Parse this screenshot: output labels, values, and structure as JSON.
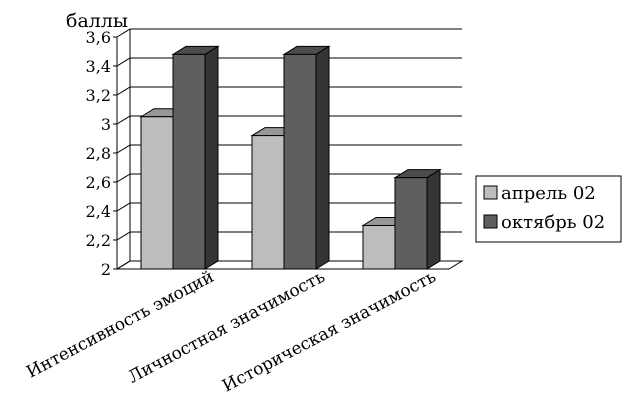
{
  "chart_data": {
    "type": "bar",
    "ylabel": "баллы",
    "categories": [
      "Интенсивность эмоций",
      "Личностная значимость",
      "Историческая значимость"
    ],
    "series": [
      {
        "name": "апрель 02",
        "values": [
          3.05,
          2.92,
          2.3
        ],
        "color": "#bdbdbd"
      },
      {
        "name": "октябрь 02",
        "values": [
          3.48,
          3.48,
          2.63
        ],
        "color": "#5f5f5f"
      }
    ],
    "ylim": [
      2,
      3.6
    ],
    "yticks": [
      "2",
      "2,2",
      "2,4",
      "2,6",
      "2,8",
      "3",
      "3,2",
      "3,4",
      "3,6"
    ],
    "grid": true,
    "legend": "right",
    "style": "3d-clustered"
  }
}
